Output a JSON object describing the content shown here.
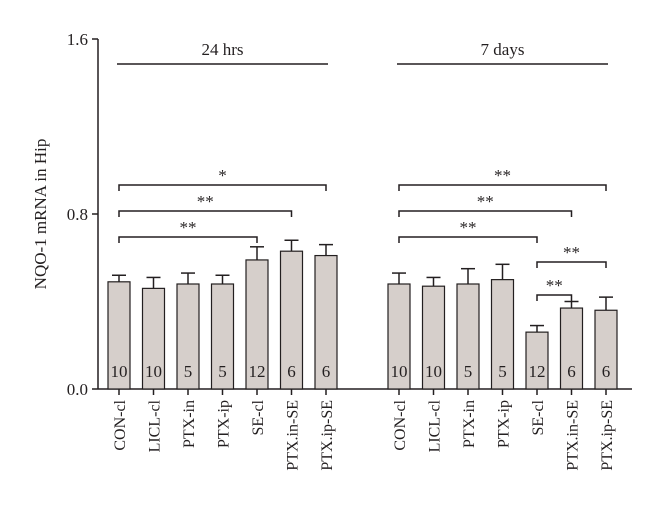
{
  "chart_data": {
    "type": "bar",
    "ylabel": "NQO-1 mRNA in Hip",
    "ylim": [
      0,
      1.6
    ],
    "yticks": [
      "0.0",
      "0.8",
      "1.6"
    ],
    "colors": {
      "bar": "#d6cfcb",
      "stroke": "#231f20"
    },
    "groups": [
      {
        "label": "24 hrs",
        "categories": [
          "CON-cl",
          "LICL-cl",
          "PTX-in",
          "PTX-ip",
          "SE-cl",
          "PTX.in-SE",
          "PTX.ip-SE"
        ],
        "values": [
          0.49,
          0.46,
          0.48,
          0.48,
          0.59,
          0.63,
          0.61
        ],
        "errors": [
          0.03,
          0.05,
          0.05,
          0.04,
          0.06,
          0.05,
          0.05
        ],
        "n": [
          "10",
          "10",
          "5",
          "5",
          "12",
          "6",
          "6"
        ],
        "significance": [
          {
            "from": "CON-cl",
            "to": "PTX.ip-SE",
            "label": "*"
          },
          {
            "from": "CON-cl",
            "to": "PTX.in-SE",
            "label": "**"
          },
          {
            "from": "CON-cl",
            "to": "SE-cl",
            "label": "**"
          }
        ]
      },
      {
        "label": "7 days",
        "categories": [
          "CON-cl",
          "LICL-cl",
          "PTX-in",
          "PTX-ip",
          "SE-cl",
          "PTX.in-SE",
          "PTX.ip-SE"
        ],
        "values": [
          0.48,
          0.47,
          0.48,
          0.5,
          0.26,
          0.37,
          0.36
        ],
        "errors": [
          0.05,
          0.04,
          0.07,
          0.07,
          0.03,
          0.03,
          0.06
        ],
        "n": [
          "10",
          "10",
          "5",
          "5",
          "12",
          "6",
          "6"
        ],
        "significance": [
          {
            "from": "CON-cl",
            "to": "PTX.ip-SE",
            "label": "**"
          },
          {
            "from": "CON-cl",
            "to": "PTX.in-SE",
            "label": "**"
          },
          {
            "from": "CON-cl",
            "to": "SE-cl",
            "label": "**"
          },
          {
            "from": "SE-cl",
            "to": "PTX.ip-SE",
            "label": "**"
          },
          {
            "from": "SE-cl",
            "to": "PTX.in-SE",
            "label": "**"
          }
        ]
      }
    ]
  }
}
